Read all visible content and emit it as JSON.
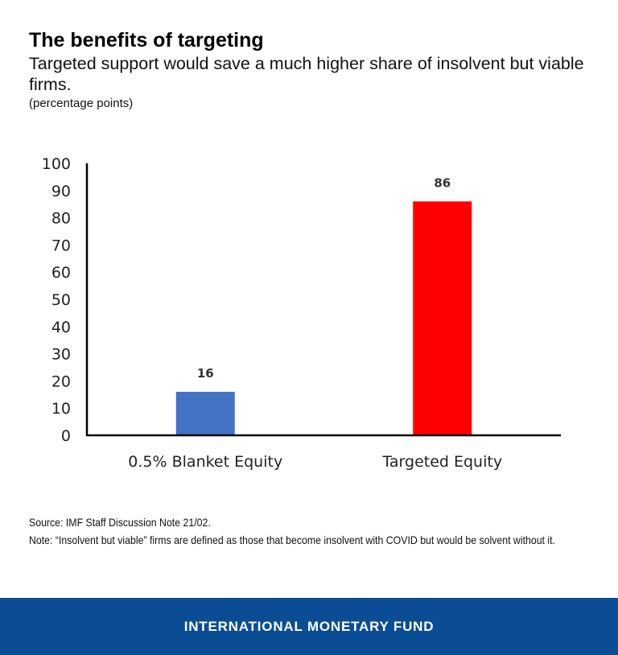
{
  "header": {
    "title": "The benefits of targeting",
    "subtitle": "Targeted support would save a much higher share of insolvent but viable firms.",
    "unit": "(percentage points)"
  },
  "chart_data": {
    "type": "bar",
    "categories": [
      "0.5% Blanket Equity",
      "Targeted Equity"
    ],
    "values": [
      16,
      86
    ],
    "data_labels": [
      "16",
      "86"
    ],
    "colors": [
      "#4472c4",
      "#ff0000"
    ],
    "ylim": [
      0,
      100
    ],
    "yticks": [
      0,
      10,
      20,
      30,
      40,
      50,
      60,
      70,
      80,
      90,
      100
    ],
    "xlabel": "",
    "ylabel": "",
    "grid": false
  },
  "notes": {
    "source": "Source: IMF Staff Discussion Note 21/02.",
    "note": "Note: “Insolvent but viable” firms are defined as those that become insolvent with COVID but would be solvent without it."
  },
  "footer": {
    "label": "INTERNATIONAL MONETARY FUND",
    "background": "#0b4d94"
  }
}
